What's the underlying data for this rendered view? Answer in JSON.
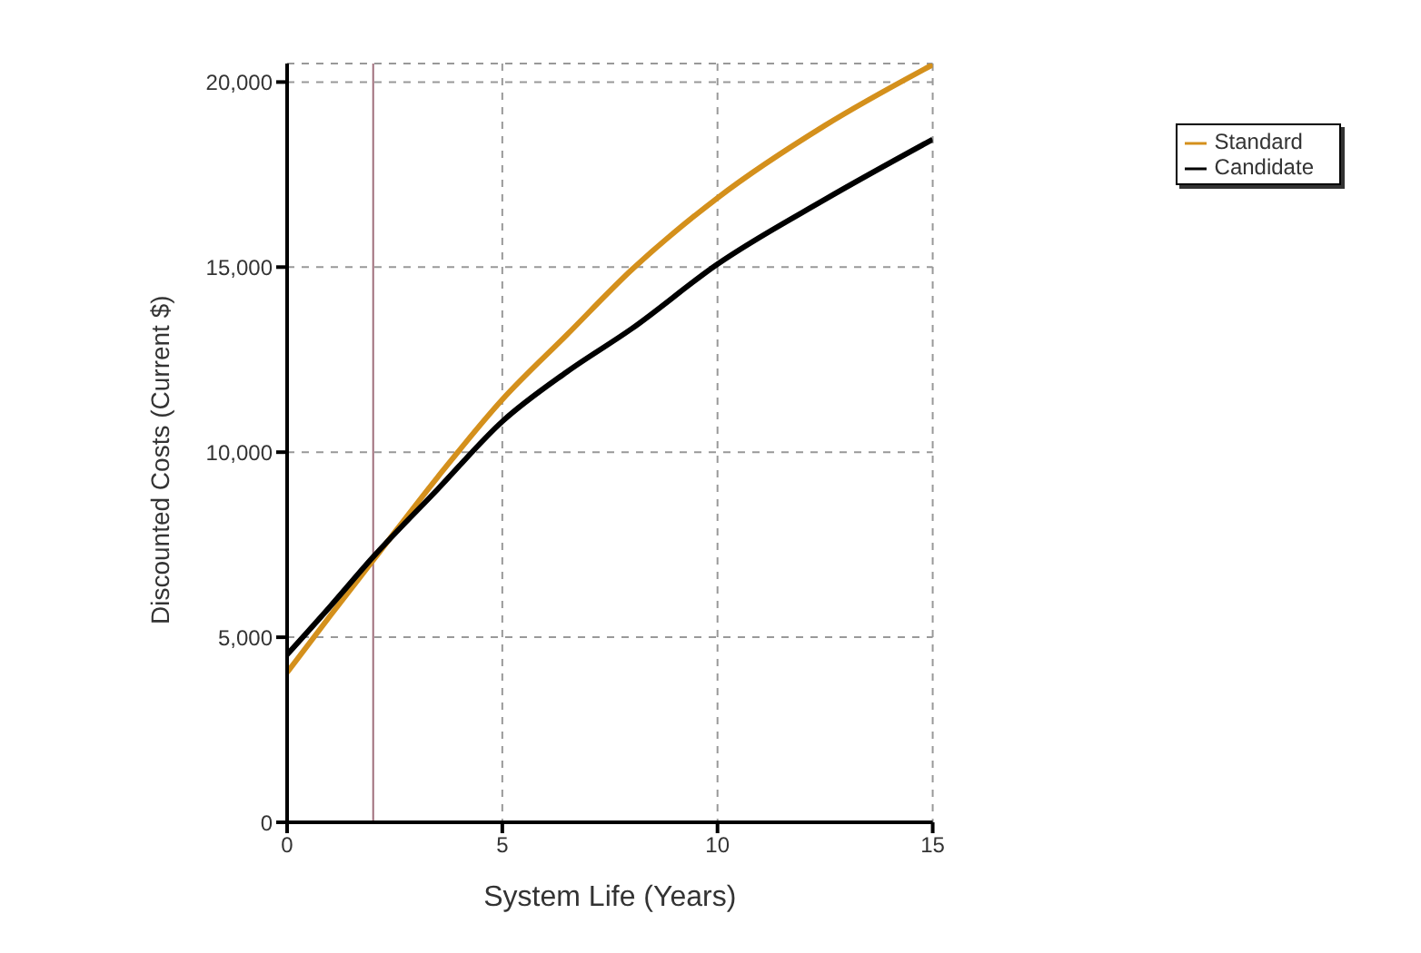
{
  "chart_data": {
    "type": "line",
    "xlabel": "System Life (Years)",
    "ylabel": "Discounted Costs (Current $)",
    "x": [
      0,
      1,
      2,
      3.5,
      5,
      6.5,
      8,
      10,
      12.5,
      15
    ],
    "series": [
      {
        "name": "Standard",
        "color": "#d4901c",
        "values": [
          4050,
          5580,
          7080,
          9330,
          11420,
          13170,
          14920,
          16870,
          18830,
          20470
        ]
      },
      {
        "name": "Candidate",
        "color": "#000000",
        "values": [
          4530,
          5830,
          7170,
          9000,
          10830,
          12170,
          13330,
          15080,
          16830,
          18450
        ]
      }
    ],
    "xlim": [
      0,
      15
    ],
    "xticks": [
      0,
      5,
      10,
      15
    ],
    "ylim": [
      0,
      20500
    ],
    "yticks": [
      0,
      {
        "value": 5000,
        "label": "5,000"
      },
      {
        "value": 10000,
        "label": "10,000"
      },
      {
        "value": 15000,
        "label": "15,000"
      },
      {
        "value": 20000,
        "label": "20,000"
      }
    ],
    "ref_lines": [
      {
        "axis": "x",
        "value": 2,
        "color": "#a0707c"
      }
    ],
    "grid": true,
    "legend": "top right",
    "marker": "none",
    "line_style": "solid"
  }
}
